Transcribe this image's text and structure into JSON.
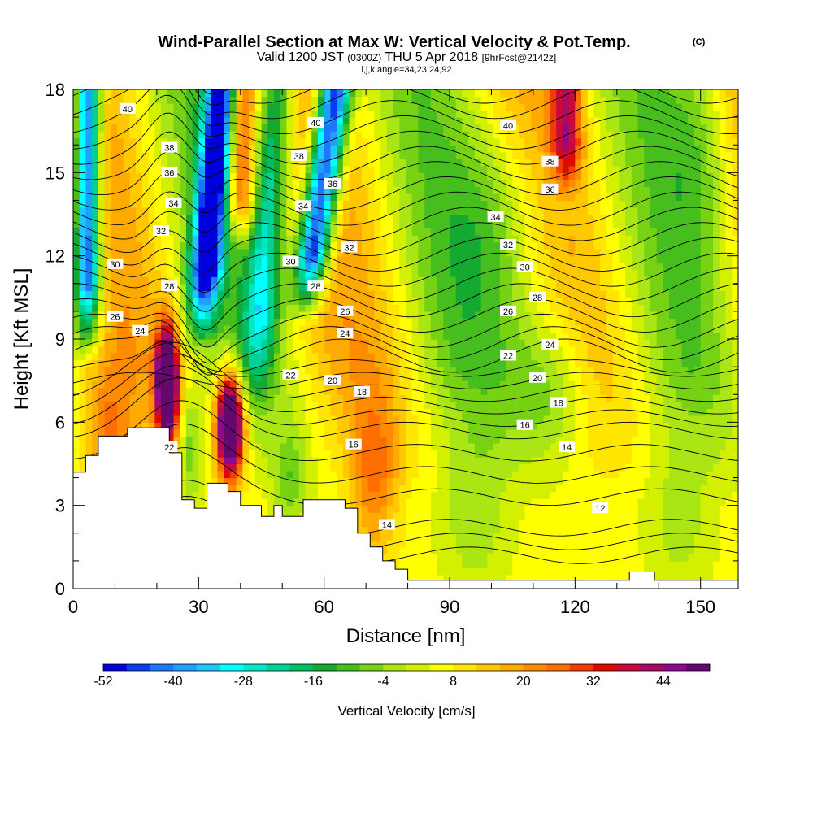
{
  "chart_data": {
    "type": "contour",
    "title": "Wind-Parallel Section at Max W: Vertical Velocity & Pot.Temp.",
    "title_mark": "(C)",
    "subtitle_main_a": "Valid 1200 JST",
    "subtitle_small_a": "(0300Z)",
    "subtitle_main_b": "THU 5 Apr 2018",
    "subtitle_small_b": "[9hrFcst@2142z]",
    "subtitle2": "i,j,k,angle=34,23,24,92",
    "xlabel": "Distance [nm]",
    "ylabel": "Height [Kft MSL]",
    "xlim": [
      0,
      159
    ],
    "ylim": [
      0,
      18
    ],
    "x_ticks": [
      "0",
      "30",
      "60",
      "90",
      "120",
      "150"
    ],
    "x_tick_values": [
      0,
      30,
      60,
      90,
      120,
      150
    ],
    "y_ticks": [
      "0",
      "3",
      "6",
      "9",
      "12",
      "15",
      "18"
    ],
    "y_tick_values": [
      0,
      3,
      6,
      9,
      12,
      15,
      18
    ],
    "colorbar": {
      "title": "Vertical Velocity [cm/s]",
      "tick_labels": [
        "-52",
        "-40",
        "-28",
        "-16",
        "-4",
        "8",
        "20",
        "32",
        "44"
      ],
      "colors": [
        "#0000dc",
        "#0a3cf0",
        "#1e78ff",
        "#1ea0ff",
        "#1ec8ff",
        "#00ffff",
        "#00e6c8",
        "#00d296",
        "#00be64",
        "#14aa32",
        "#46be1e",
        "#78d214",
        "#aae614",
        "#d2f000",
        "#ffff00",
        "#ffe600",
        "#ffc800",
        "#ffaa00",
        "#ff8c00",
        "#ff6e00",
        "#f03c00",
        "#dc0a00",
        "#c80a3c",
        "#aa0a64",
        "#8c0a8c",
        "#64086e"
      ]
    },
    "terrain": [
      [
        0,
        4.2
      ],
      [
        3,
        4.2
      ],
      [
        3,
        4.8
      ],
      [
        6,
        4.8
      ],
      [
        6,
        5.5
      ],
      [
        13,
        5.5
      ],
      [
        13,
        5.8
      ],
      [
        23,
        5.8
      ],
      [
        23,
        4.9
      ],
      [
        26,
        4.9
      ],
      [
        26,
        3.2
      ],
      [
        29,
        3.2
      ],
      [
        29,
        2.9
      ],
      [
        32,
        2.9
      ],
      [
        32,
        3.8
      ],
      [
        37,
        3.8
      ],
      [
        37,
        3.5
      ],
      [
        40,
        3.5
      ],
      [
        40,
        3.0
      ],
      [
        45,
        3.0
      ],
      [
        45,
        2.6
      ],
      [
        48,
        2.6
      ],
      [
        48,
        3.0
      ],
      [
        50,
        3.0
      ],
      [
        50,
        2.6
      ],
      [
        55,
        2.6
      ],
      [
        55,
        3.2
      ],
      [
        65,
        3.2
      ],
      [
        65,
        2.9
      ],
      [
        68,
        2.9
      ],
      [
        68,
        2.0
      ],
      [
        71,
        2.0
      ],
      [
        71,
        1.5
      ],
      [
        74,
        1.5
      ],
      [
        74,
        1.0
      ],
      [
        77,
        1.0
      ],
      [
        77,
        0.7
      ],
      [
        80,
        0.7
      ],
      [
        80,
        0.3
      ],
      [
        133,
        0.3
      ],
      [
        133,
        0.6
      ],
      [
        139,
        0.6
      ],
      [
        139,
        0.3
      ],
      [
        159,
        0.3
      ]
    ],
    "contour_labels": [
      {
        "text": "40",
        "x": 13,
        "y": 17.3
      },
      {
        "text": "40",
        "x": 58,
        "y": 16.8
      },
      {
        "text": "40",
        "x": 104,
        "y": 16.7
      },
      {
        "text": "38",
        "x": 23,
        "y": 15.9
      },
      {
        "text": "38",
        "x": 54,
        "y": 15.6
      },
      {
        "text": "38",
        "x": 114,
        "y": 15.4
      },
      {
        "text": "36",
        "x": 23,
        "y": 15.0
      },
      {
        "text": "36",
        "x": 62,
        "y": 14.6
      },
      {
        "text": "36",
        "x": 114,
        "y": 14.4
      },
      {
        "text": "34",
        "x": 24,
        "y": 13.9
      },
      {
        "text": "34",
        "x": 55,
        "y": 13.8
      },
      {
        "text": "34",
        "x": 101,
        "y": 13.4
      },
      {
        "text": "32",
        "x": 21,
        "y": 12.9
      },
      {
        "text": "32",
        "x": 66,
        "y": 12.3
      },
      {
        "text": "32",
        "x": 104,
        "y": 12.4
      },
      {
        "text": "30",
        "x": 10,
        "y": 11.7
      },
      {
        "text": "30",
        "x": 52,
        "y": 11.8
      },
      {
        "text": "30",
        "x": 108,
        "y": 11.6
      },
      {
        "text": "28",
        "x": 23,
        "y": 10.9
      },
      {
        "text": "28",
        "x": 58,
        "y": 10.9
      },
      {
        "text": "28",
        "x": 111,
        "y": 10.5
      },
      {
        "text": "26",
        "x": 10,
        "y": 9.8
      },
      {
        "text": "26",
        "x": 65,
        "y": 10.0
      },
      {
        "text": "26",
        "x": 104,
        "y": 10.0
      },
      {
        "text": "24",
        "x": 16,
        "y": 9.3
      },
      {
        "text": "24",
        "x": 65,
        "y": 9.2
      },
      {
        "text": "24",
        "x": 114,
        "y": 8.8
      },
      {
        "text": "22",
        "x": 52,
        "y": 7.7
      },
      {
        "text": "22",
        "x": 104,
        "y": 8.4
      },
      {
        "text": "22",
        "x": 23,
        "y": 5.1
      },
      {
        "text": "20",
        "x": 62,
        "y": 7.5
      },
      {
        "text": "20",
        "x": 111,
        "y": 7.6
      },
      {
        "text": "18",
        "x": 69,
        "y": 7.1
      },
      {
        "text": "18",
        "x": 116,
        "y": 6.7
      },
      {
        "text": "16",
        "x": 67,
        "y": 5.2
      },
      {
        "text": "16",
        "x": 108,
        "y": 5.9
      },
      {
        "text": "14",
        "x": 75,
        "y": 2.3
      },
      {
        "text": "14",
        "x": 118,
        "y": 5.1
      },
      {
        "text": "12",
        "x": 126,
        "y": 2.9
      }
    ]
  }
}
